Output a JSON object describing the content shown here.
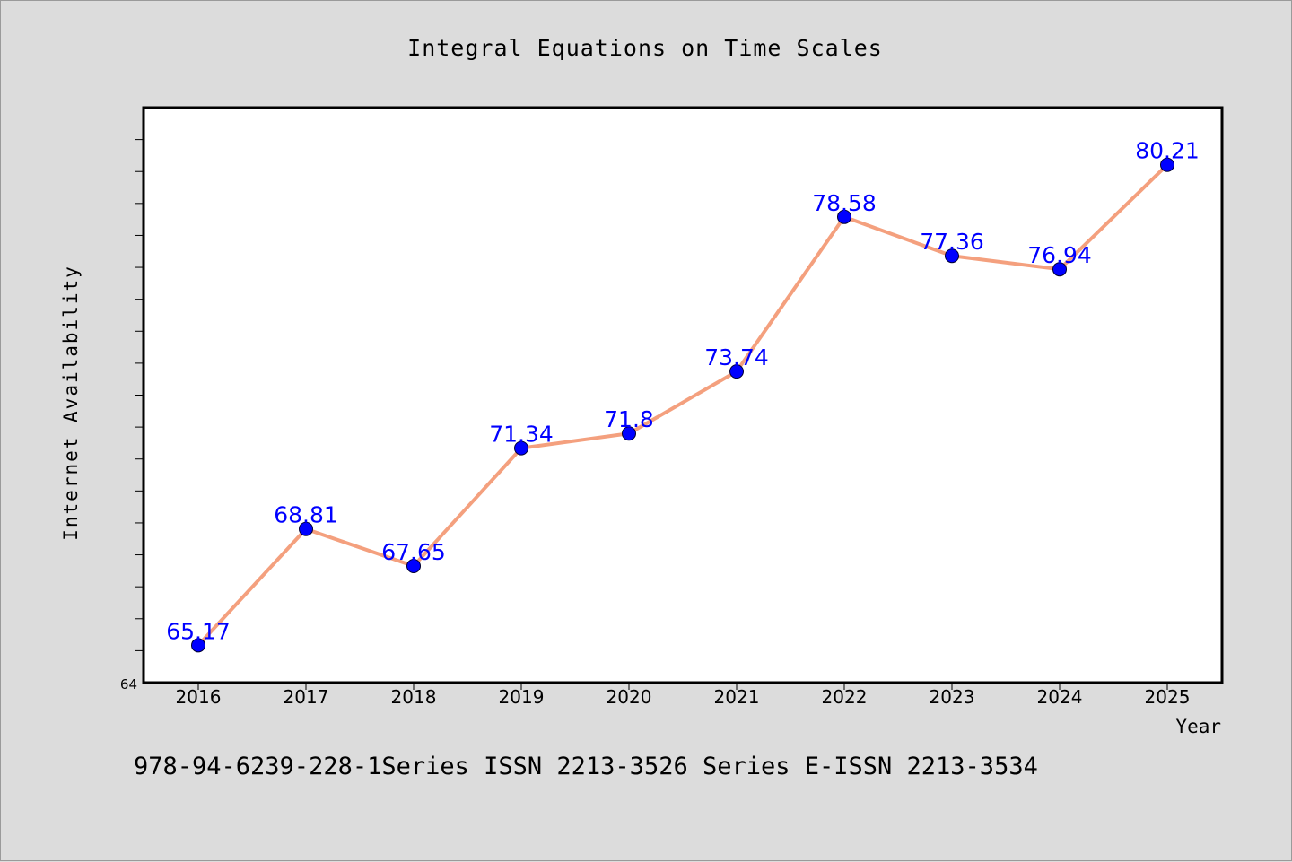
{
  "chart_data": {
    "type": "line",
    "title": "Integral Equations on Time Scales",
    "xlabel": "Year",
    "ylabel": "Internet Availability",
    "categories": [
      "2016",
      "2017",
      "2018",
      "2019",
      "2020",
      "2021",
      "2022",
      "2023",
      "2024",
      "2025"
    ],
    "series": [
      {
        "values": [
          65.17,
          68.81,
          67.65,
          71.34,
          71.8,
          73.74,
          78.58,
          77.36,
          76.94,
          80.21
        ],
        "labels": [
          "65.17",
          "68.81",
          "67.65",
          "71.34",
          "71.8",
          "73.74",
          "78.58",
          "77.36",
          "76.94",
          "80.21"
        ],
        "line_color": "#f4a07e",
        "marker_color": "#0000ff",
        "label_color": "#0000ff"
      }
    ],
    "ylim": [
      64,
      82
    ],
    "y_tick_labels": [
      "64"
    ],
    "y_minor_step": 1,
    "grid": false,
    "legend": "none"
  },
  "footer": {
    "text": "978-94-6239-228-1Series ISSN 2213-3526 Series E-ISSN 2213-3534"
  }
}
